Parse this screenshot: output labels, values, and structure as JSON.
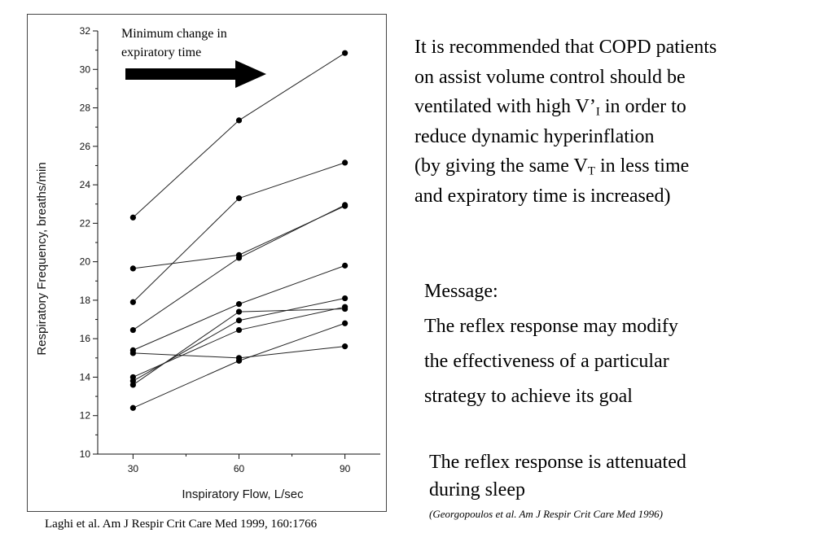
{
  "chart_data": {
    "type": "line",
    "xlabel": "Inspiratory Flow, L/sec",
    "ylabel": "Respiratory Frequency, breaths/min",
    "x": [
      30,
      60,
      90
    ],
    "xticks": [
      "30",
      "60",
      "90"
    ],
    "xlim": [
      20,
      100
    ],
    "ylim": [
      10,
      32
    ],
    "yticks": [
      "10",
      "12",
      "14",
      "16",
      "18",
      "20",
      "22",
      "24",
      "26",
      "28",
      "30",
      "32"
    ],
    "series": [
      {
        "values": [
          22.3,
          27.35,
          30.85
        ]
      },
      {
        "values": [
          17.9,
          23.3,
          25.15
        ]
      },
      {
        "values": [
          19.65,
          20.35,
          22.9
        ]
      },
      {
        "values": [
          16.45,
          20.2,
          22.95
        ]
      },
      {
        "values": [
          15.4,
          17.8,
          19.8
        ]
      },
      {
        "values": [
          13.8,
          16.95,
          18.1
        ]
      },
      {
        "values": [
          13.6,
          17.4,
          17.55
        ]
      },
      {
        "values": [
          14.0,
          16.45,
          17.65
        ]
      },
      {
        "values": [
          15.25,
          15.0,
          15.6
        ]
      },
      {
        "values": [
          12.4,
          14.85,
          16.8
        ]
      }
    ],
    "annotation": {
      "line1": "Minimum change in",
      "line2": "expiratory time",
      "arrow": "right"
    },
    "grid": false,
    "legend": "none"
  },
  "citation": "Laghi et al. Am J Respir Crit Care Med 1999, 160:1766",
  "recommendation": {
    "l1": "It is recommended that COPD patients",
    "l2": "on assist volume control should be",
    "l3a": "ventilated with high V’",
    "l3sub": "I",
    "l3b": " in order to",
    "l4": "reduce dynamic hyperinflation",
    "l5a": "(by giving the same V",
    "l5sub": "T",
    "l5b": " in less time",
    "l6": "and expiratory time is increased)"
  },
  "message": {
    "heading": "Message:",
    "l1": "The reflex response may modify",
    "l2": "the effectiveness of a particular",
    "l3": "strategy to achieve its goal"
  },
  "sleep": {
    "l1": "The reflex response is attenuated",
    "l2": "during sleep",
    "citation": "(Georgopoulos et al. Am J Respir Crit Care Med 1996)"
  }
}
